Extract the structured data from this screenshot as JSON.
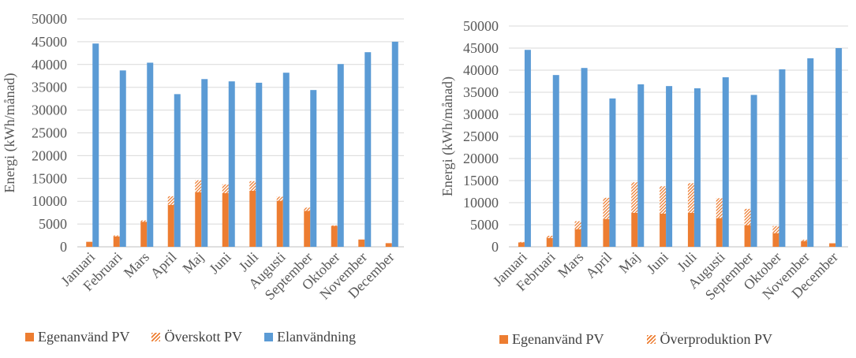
{
  "colors": {
    "egen": "#ed7d31",
    "surplus": "#ed7d31",
    "el": "#5b9bd5",
    "grid": "#d9d9d9",
    "axis": "#bfbfbf"
  },
  "chart_data": [
    {
      "type": "bar",
      "ylabel": "Energi (kWh/månad)",
      "ylim": [
        0,
        50000
      ],
      "yticks": [
        0,
        5000,
        10000,
        15000,
        20000,
        25000,
        30000,
        35000,
        40000,
        45000,
        50000
      ],
      "categories": [
        "Januari",
        "Februari",
        "Mars",
        "April",
        "Maj",
        "Juni",
        "Juli",
        "Augusti",
        "September",
        "Oktober",
        "November",
        "December"
      ],
      "series": [
        {
          "name": "Egenanvänd PV",
          "stack": "pv",
          "style": "solid",
          "values": [
            1100,
            2300,
            5500,
            9200,
            12000,
            11800,
            12300,
            10100,
            7900,
            4600,
            1600,
            800
          ]
        },
        {
          "name": "Överskott PV",
          "stack": "pv",
          "style": "hatched",
          "values": [
            0,
            200,
            300,
            1900,
            2600,
            1900,
            2100,
            900,
            700,
            100,
            0,
            0
          ]
        },
        {
          "name": "Elanvändning",
          "stack": "el",
          "style": "solid",
          "values": [
            44600,
            38700,
            40400,
            33500,
            36800,
            36300,
            36000,
            38200,
            34400,
            40100,
            42700,
            45000
          ]
        }
      ],
      "legend_position": "bottom"
    },
    {
      "type": "bar",
      "ylabel": "Energi (kWh/månad)",
      "ylim": [
        0,
        50000
      ],
      "yticks": [
        0,
        5000,
        10000,
        15000,
        20000,
        25000,
        30000,
        35000,
        40000,
        45000,
        50000
      ],
      "categories": [
        "Januari",
        "Februari",
        "Mars",
        "April",
        "Maj",
        "Juni",
        "Juli",
        "Augusti",
        "September",
        "Oktober",
        "November",
        "December"
      ],
      "series": [
        {
          "name": "Egenanvänd PV",
          "stack": "pv",
          "style": "solid",
          "values": [
            1000,
            2000,
            4000,
            6300,
            7700,
            7500,
            7700,
            6500,
            4900,
            3100,
            1300,
            800
          ]
        },
        {
          "name": "Överproduktion PV",
          "stack": "pv",
          "style": "hatched",
          "values": [
            100,
            500,
            1800,
            4800,
            6900,
            6200,
            6700,
            4500,
            3700,
            1600,
            300,
            0
          ]
        },
        {
          "name": "Elanvändning",
          "stack": "el",
          "style": "solid",
          "in_legend": false,
          "values": [
            44600,
            38900,
            40500,
            33600,
            36800,
            36400,
            35900,
            38400,
            34400,
            40200,
            42700,
            45000
          ]
        }
      ],
      "legend_position": "bottom"
    }
  ],
  "legend_left": {
    "egen": "Egenanvänd PV",
    "surplus": "Överskott PV",
    "el": "Elanvändning"
  },
  "legend_right": {
    "egen": "Egenanvänd PV",
    "surplus": "Överproduktion PV"
  }
}
